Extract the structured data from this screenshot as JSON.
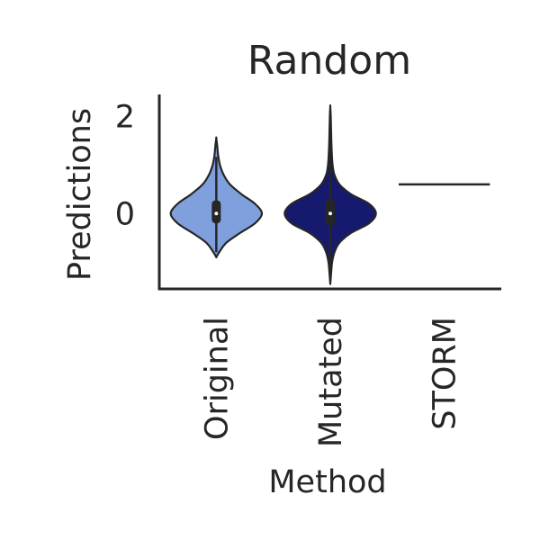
{
  "chart_data": {
    "type": "violin",
    "title": "Random",
    "xlabel": "Method",
    "ylabel": "Predictions",
    "ylim": [
      -1.55,
      2.45
    ],
    "yticks": [
      0,
      2
    ],
    "ytick_labels": [
      "0",
      "2"
    ],
    "categories": [
      "Original",
      "Mutated",
      "STORM"
    ],
    "grid": false,
    "colors": {
      "Original": "#7fa0dc",
      "Mutated": "#161a6e",
      "STORM": "#7fa0dc",
      "outline": "#262626",
      "axis": "#262626"
    },
    "violins": [
      {
        "category": "Original",
        "min": -0.9,
        "max": 1.55,
        "median": 0.0,
        "q1": -0.2,
        "q3": 0.27,
        "profile": [
          [
            -0.9,
            0.0
          ],
          [
            -0.8,
            0.06
          ],
          [
            -0.6,
            0.22
          ],
          [
            -0.4,
            0.52
          ],
          [
            -0.2,
            0.85
          ],
          [
            0.0,
            1.0
          ],
          [
            0.2,
            0.85
          ],
          [
            0.4,
            0.55
          ],
          [
            0.6,
            0.3
          ],
          [
            0.8,
            0.16
          ],
          [
            1.0,
            0.08
          ],
          [
            1.2,
            0.04
          ],
          [
            1.4,
            0.02
          ],
          [
            1.55,
            0.0
          ]
        ]
      },
      {
        "category": "Mutated",
        "min": -1.45,
        "max": 2.2,
        "median": 0.0,
        "q1": -0.25,
        "q3": 0.3,
        "profile": [
          [
            -1.45,
            0.0
          ],
          [
            -1.2,
            0.02
          ],
          [
            -1.0,
            0.04
          ],
          [
            -0.8,
            0.09
          ],
          [
            -0.6,
            0.2
          ],
          [
            -0.4,
            0.45
          ],
          [
            -0.2,
            0.85
          ],
          [
            0.0,
            1.0
          ],
          [
            0.2,
            0.85
          ],
          [
            0.4,
            0.45
          ],
          [
            0.6,
            0.2
          ],
          [
            0.8,
            0.09
          ],
          [
            1.0,
            0.05
          ],
          [
            1.3,
            0.03
          ],
          [
            1.6,
            0.02
          ],
          [
            2.0,
            0.01
          ],
          [
            2.2,
            0.0
          ]
        ]
      },
      {
        "category": "STORM",
        "constant": 0.6
      }
    ]
  }
}
